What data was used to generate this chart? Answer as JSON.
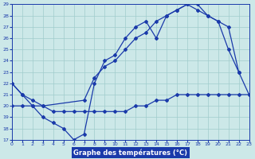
{
  "xlabel": "Graphe des températures (°C)",
  "bg_color": "#cce8e8",
  "grid_color": "#a0cccc",
  "line_color": "#1a3aaa",
  "xlim": [
    0,
    23
  ],
  "ylim": [
    17,
    29
  ],
  "xticks": [
    0,
    1,
    2,
    3,
    4,
    5,
    6,
    7,
    8,
    9,
    10,
    11,
    12,
    13,
    14,
    15,
    16,
    17,
    18,
    19,
    20,
    21,
    22,
    23
  ],
  "yticks": [
    17,
    18,
    19,
    20,
    21,
    22,
    23,
    24,
    25,
    26,
    27,
    28,
    29
  ],
  "curves": [
    {
      "x": [
        0,
        1,
        2,
        3,
        4,
        5,
        6,
        7,
        8,
        9,
        10,
        11,
        12,
        13,
        14,
        15,
        16,
        17,
        18,
        19,
        20,
        21,
        22
      ],
      "y": [
        22,
        21,
        20,
        19,
        18.5,
        18,
        17,
        17.5,
        22,
        24,
        24.5,
        26,
        27,
        27.5,
        26,
        28,
        28.5,
        29,
        28.5,
        28,
        27.5,
        25,
        23
      ]
    },
    {
      "x": [
        0,
        1,
        2,
        3,
        7,
        8,
        9,
        10,
        11,
        12,
        13,
        14,
        15,
        16,
        17,
        18,
        19,
        20,
        21,
        22,
        23
      ],
      "y": [
        22,
        21,
        20.5,
        20,
        20.5,
        22.5,
        23.5,
        24,
        25,
        26,
        26.5,
        27.5,
        28,
        28.5,
        29,
        29,
        28,
        27.5,
        27,
        23,
        21
      ]
    },
    {
      "x": [
        0,
        1,
        2,
        3,
        4,
        5,
        6,
        7,
        8,
        9,
        10,
        11,
        12,
        13,
        14,
        15,
        16,
        17,
        18,
        19,
        20,
        21,
        22,
        23
      ],
      "y": [
        20,
        20,
        20,
        20,
        19.5,
        19.5,
        19.5,
        19.5,
        19.5,
        19.5,
        19.5,
        19.5,
        20,
        20,
        20.5,
        20.5,
        21,
        21,
        21,
        21,
        21,
        21,
        21,
        21
      ]
    }
  ],
  "xlabel_bg": "#1a3aaa",
  "xlabel_fg": "#ffffff",
  "xlabel_fontsize": 6,
  "tick_fontsize": 4.5,
  "figsize": [
    3.2,
    2.0
  ],
  "dpi": 100
}
